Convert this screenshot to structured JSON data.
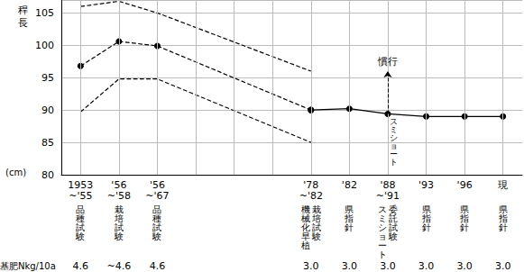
{
  "chart_data": {
    "type": "line",
    "y_label": "稈長",
    "y_unit": "(cm)",
    "categories": [
      "1953\n~'55",
      "'56\n~'58",
      "'56\n~'67",
      null,
      null,
      null,
      "'78\n~'82",
      "'82",
      "'88\n~'91",
      "'93",
      "'96",
      "現"
    ],
    "notes": [
      [
        "品種試験"
      ],
      [
        "栽培試験"
      ],
      [
        "品種試験"
      ],
      null,
      null,
      null,
      [
        "栽培試験",
        "機械化早植"
      ],
      [
        "県指針"
      ],
      [
        "委託試験",
        "スミショート"
      ],
      [
        "県指針"
      ],
      [
        "県指針"
      ],
      [
        "県指針"
      ]
    ],
    "fertilizer": {
      "label": "基肥Nkg/10a",
      "values": [
        "4.6",
        "~4.6",
        "4.6",
        null,
        null,
        null,
        "3.0",
        "3.0",
        "3.0",
        "3.0",
        "3.0",
        "3.0"
      ]
    },
    "series": [
      {
        "color": "#000000",
        "line_style": "dashed",
        "marker": "none",
        "values": [
          106,
          106.8,
          105,
          null,
          null,
          null,
          96,
          null,
          null,
          null,
          null,
          null
        ]
      },
      {
        "color": "#000000",
        "line_style": "dashed",
        "marker": "circle",
        "values": [
          96.8,
          100.6,
          99.9,
          null,
          null,
          null,
          90,
          null,
          null,
          null,
          null,
          null
        ]
      },
      {
        "color": "#000000",
        "line_style": "dashed",
        "marker": "none",
        "values": [
          89.7,
          94.8,
          94.8,
          null,
          null,
          null,
          85,
          null,
          null,
          null,
          null,
          null
        ]
      },
      {
        "color": "#000000",
        "line_style": "solid",
        "marker": "circle",
        "values": [
          null,
          null,
          null,
          null,
          null,
          null,
          90,
          90.2,
          89.4,
          89,
          89,
          89
        ]
      }
    ],
    "annotations": [
      {
        "text": "慣行",
        "x": "'88\n~'91",
        "from": 89.4,
        "y": 96
      },
      {
        "text": "スミショート",
        "x": "'88\n~'91",
        "y": 88.8
      }
    ],
    "ylim": [
      80,
      107
    ],
    "yticks": [
      80,
      85,
      90,
      95,
      100,
      105
    ],
    "grid": true
  }
}
